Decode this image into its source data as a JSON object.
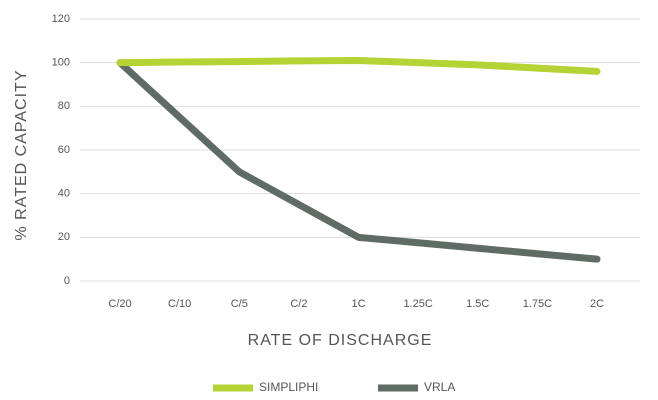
{
  "chart_data": {
    "type": "line",
    "categories": [
      "C/20",
      "C/10",
      "C/5",
      "C/2",
      "1C",
      "1.25C",
      "1.5C",
      "1.75C",
      "2C"
    ],
    "series": [
      {
        "name": "SIMPLIPHI",
        "color": "#b5d334",
        "values": [
          100,
          100.3,
          100.5,
          100.8,
          101,
          100,
          99,
          97.5,
          96
        ]
      },
      {
        "name": "VRLA",
        "color": "#5f6b65",
        "values": [
          100,
          75,
          50,
          35,
          20,
          17.5,
          15,
          12.5,
          10
        ]
      }
    ],
    "xlabel": "RATE OF DISCHARGE",
    "ylabel": "% RATED CAPACITY",
    "ylim": [
      0,
      120
    ],
    "yticks": [
      0,
      20,
      40,
      60,
      80,
      100,
      120
    ],
    "grid": true
  }
}
